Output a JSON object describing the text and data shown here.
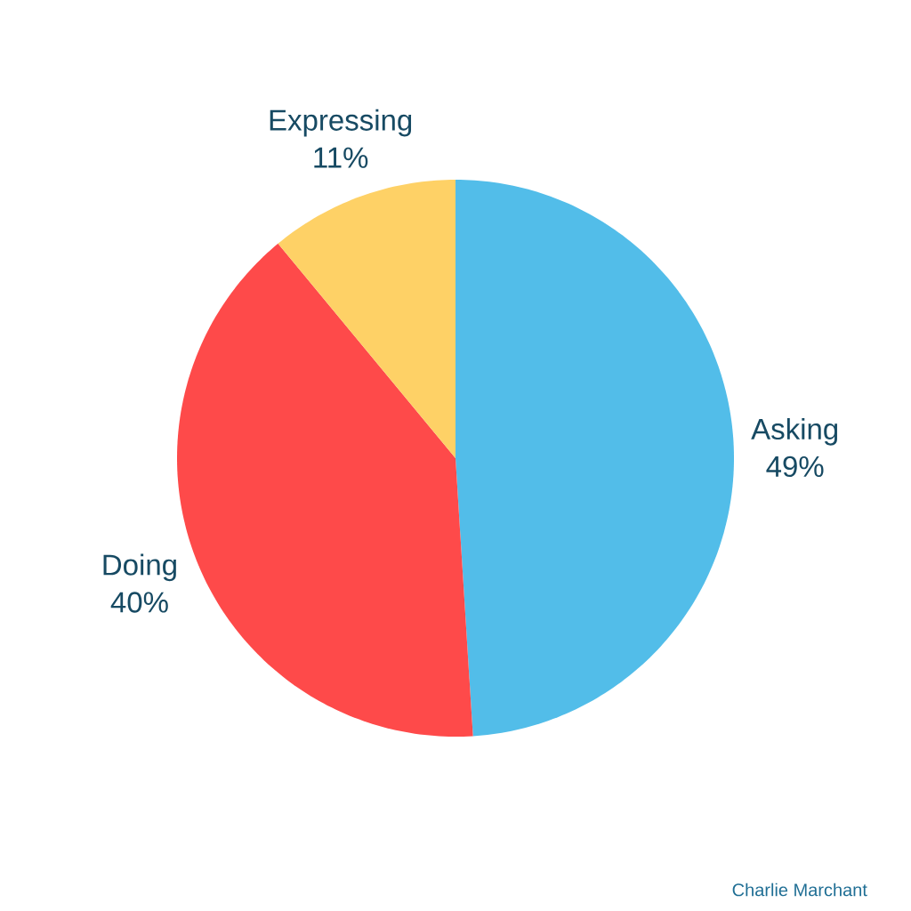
{
  "chart_data": {
    "type": "pie",
    "categories": [
      "Asking",
      "Doing",
      "Expressing"
    ],
    "values": [
      49,
      40,
      11
    ],
    "colors": [
      "#52bde9",
      "#fe4a4a",
      "#fed166"
    ],
    "value_labels": [
      "49%",
      "40%",
      "11%"
    ],
    "annotations": [
      "Charlie Marchant"
    ]
  }
}
